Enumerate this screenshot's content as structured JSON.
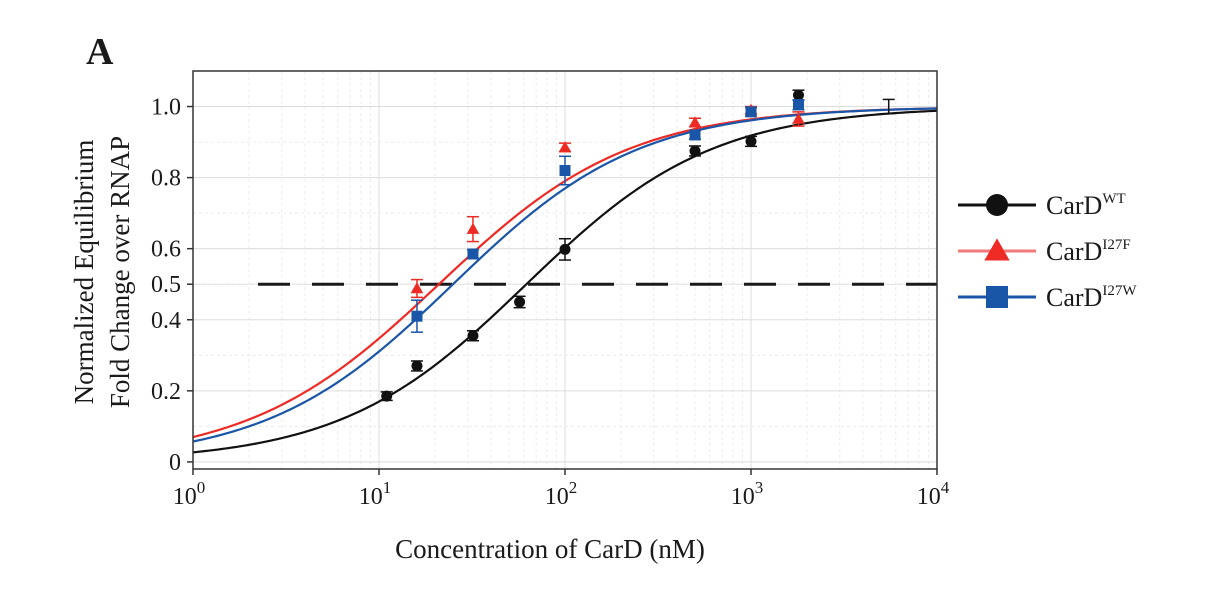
{
  "chart_data": {
    "type": "scatter",
    "panel_label": "A",
    "xlabel": "Concentration of CarD (nM)",
    "ylabel_lines": [
      "Normalized Equilibrium",
      "Fold Change over RNAP"
    ],
    "x_scale": "log",
    "xlim": [
      1,
      10000
    ],
    "ylim": [
      -0.02,
      1.1
    ],
    "x_ticks": [
      {
        "value": 1,
        "base": "10",
        "exp": "0"
      },
      {
        "value": 10,
        "base": "10",
        "exp": "1"
      },
      {
        "value": 100,
        "base": "10",
        "exp": "2"
      },
      {
        "value": 1000,
        "base": "10",
        "exp": "3"
      },
      {
        "value": 10000,
        "base": "10",
        "exp": "4"
      }
    ],
    "y_ticks": [
      {
        "value": 0,
        "label": "0"
      },
      {
        "value": 0.2,
        "label": "0.2"
      },
      {
        "value": 0.4,
        "label": "0.4"
      },
      {
        "value": 0.5,
        "label": "0.5"
      },
      {
        "value": 0.6,
        "label": "0.6"
      },
      {
        "value": 0.8,
        "label": "0.8"
      },
      {
        "value": 1.0,
        "label": "1.0"
      }
    ],
    "grid": true,
    "reference_line": {
      "y": 0.5,
      "style": "dashed",
      "color": "#1a1a1a"
    },
    "legend_position": "right",
    "series": [
      {
        "legend_base": "CarD",
        "legend_sup": "WT",
        "color": "#111111",
        "marker": "circle",
        "fit_ec50": 62,
        "fit_hill": 0.87,
        "points": [
          {
            "x": 11,
            "y": 0.185,
            "err": 0.012
          },
          {
            "x": 16,
            "y": 0.27,
            "err": 0.014
          },
          {
            "x": 32,
            "y": 0.355,
            "err": 0.014
          },
          {
            "x": 57,
            "y": 0.45,
            "err": 0.016
          },
          {
            "x": 100,
            "y": 0.598,
            "err": 0.03
          },
          {
            "x": 500,
            "y": 0.875,
            "err": 0.014
          },
          {
            "x": 1000,
            "y": 0.902,
            "err": 0.014
          },
          {
            "x": 1800,
            "y": 1.032,
            "err": 0.014
          },
          {
            "x": 5500,
            "y": 1.0,
            "err": 0.02
          }
        ]
      },
      {
        "legend_base": "CarD",
        "legend_sup": "I27F",
        "color": "#ee2a24",
        "marker": "triangle",
        "fit_ec50": 21,
        "fit_hill": 0.85,
        "points": [
          {
            "x": 16,
            "y": 0.488,
            "err": 0.025
          },
          {
            "x": 32,
            "y": 0.655,
            "err": 0.035
          },
          {
            "x": 100,
            "y": 0.885,
            "err": 0.012
          },
          {
            "x": 500,
            "y": 0.955,
            "err": 0.012
          },
          {
            "x": 1000,
            "y": 0.99,
            "err": 0.01
          },
          {
            "x": 1800,
            "y": 0.965,
            "err": 0.02
          }
        ]
      },
      {
        "legend_base": "CarD",
        "legend_sup": "I27W",
        "color": "#1a56a8",
        "marker": "square",
        "fit_ec50": 25,
        "fit_hill": 0.87,
        "points": [
          {
            "x": 16,
            "y": 0.41,
            "err": 0.045
          },
          {
            "x": 32,
            "y": 0.585,
            "err": 0.012
          },
          {
            "x": 100,
            "y": 0.82,
            "err": 0.04
          },
          {
            "x": 500,
            "y": 0.92,
            "err": 0.012
          },
          {
            "x": 1000,
            "y": 0.985,
            "err": 0.012
          },
          {
            "x": 1800,
            "y": 1.005,
            "err": 0.014
          }
        ]
      }
    ]
  }
}
